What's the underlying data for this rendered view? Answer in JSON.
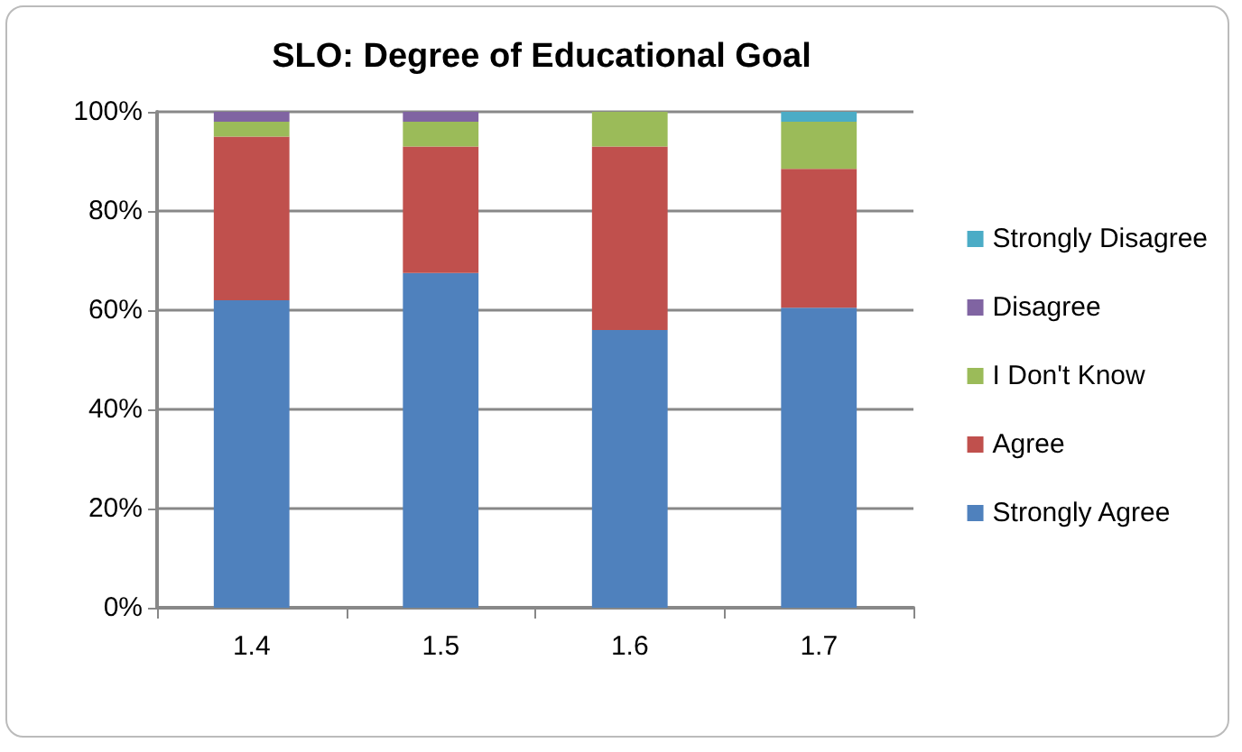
{
  "chart_data": {
    "type": "bar",
    "title": "SLO: Degree of Educational Goal",
    "categories": [
      "1.4",
      "1.5",
      "1.6",
      "1.7"
    ],
    "stacked": true,
    "series": [
      {
        "name": "Strongly Agree",
        "color": "#4f81bd",
        "values": [
          62,
          67.5,
          56,
          60.5
        ]
      },
      {
        "name": "Agree",
        "color": "#c0504d",
        "values": [
          33,
          25.5,
          37,
          28
        ]
      },
      {
        "name": "I Don't Know",
        "color": "#9bbb59",
        "values": [
          3,
          5,
          7,
          9.5
        ]
      },
      {
        "name": "Disagree",
        "color": "#8064a2",
        "values": [
          2,
          2,
          0,
          0
        ]
      },
      {
        "name": "Strongly Disagree",
        "color": "#4bacc6",
        "values": [
          0,
          0,
          0,
          2
        ]
      }
    ],
    "ylim": [
      0,
      100
    ],
    "yticks": [
      {
        "value": 0,
        "label": "0%"
      },
      {
        "value": 20,
        "label": "20%"
      },
      {
        "value": 40,
        "label": "40%"
      },
      {
        "value": 60,
        "label": "60%"
      },
      {
        "value": 80,
        "label": "80%"
      },
      {
        "value": 100,
        "label": "100%"
      }
    ],
    "grid": "y",
    "legend": "right"
  }
}
